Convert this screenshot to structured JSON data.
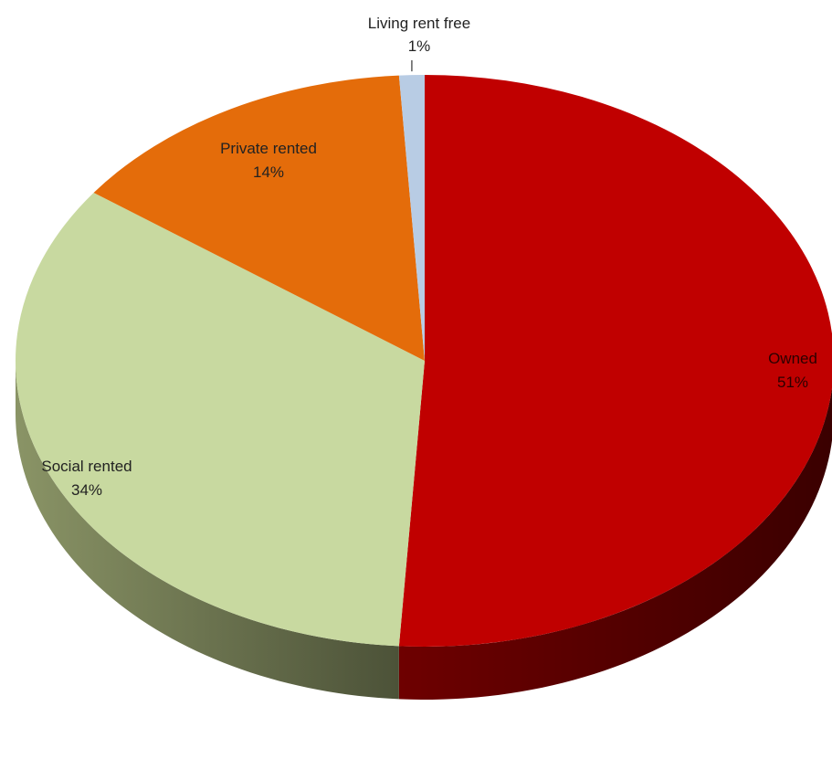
{
  "chart_data": {
    "type": "pie",
    "style": "3d",
    "categories": [
      "Owned",
      "Social rented",
      "Private rented",
      "Living rent free"
    ],
    "values": [
      51,
      34,
      14,
      1
    ],
    "labels": [
      "51%",
      "34%",
      "14%",
      "1%"
    ],
    "colors": [
      "#c00000",
      "#c8d9a0",
      "#e46c0a",
      "#b8cce4"
    ],
    "side_colors": [
      "#4d0000",
      "#5a6040",
      "#7a3a05",
      "#6f7d90"
    ],
    "legend": "none"
  }
}
